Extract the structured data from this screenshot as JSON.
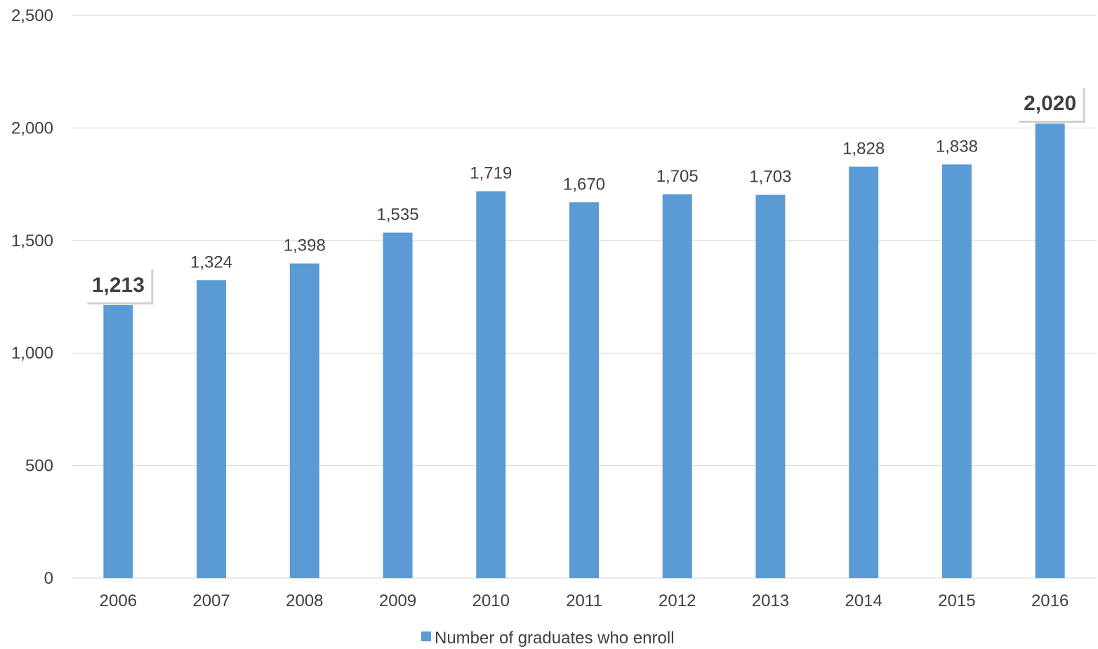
{
  "chart_data": {
    "type": "bar",
    "categories": [
      "2006",
      "2007",
      "2008",
      "2009",
      "2010",
      "2011",
      "2012",
      "2013",
      "2014",
      "2015",
      "2016"
    ],
    "series": [
      {
        "name": "Number of graduates who enroll",
        "values": [
          1213,
          1324,
          1398,
          1535,
          1719,
          1670,
          1705,
          1703,
          1828,
          1838,
          2020
        ],
        "value_labels": [
          "1,213",
          "1,324",
          "1,398",
          "1,535",
          "1,719",
          "1,670",
          "1,705",
          "1,703",
          "1,828",
          "1,838",
          "2,020"
        ],
        "color": "#5b9bd5"
      }
    ],
    "highlighted_categories": [
      "2006",
      "2016"
    ],
    "ylim": [
      0,
      2500
    ],
    "yticks": [
      0,
      500,
      1000,
      1500,
      2000,
      2500
    ],
    "ytick_labels": [
      "0",
      "500",
      "1,000",
      "1,500",
      "2,000",
      "2,500"
    ],
    "grid": true,
    "legend_position": "bottom-center",
    "title": "",
    "xlabel": "",
    "ylabel": ""
  }
}
